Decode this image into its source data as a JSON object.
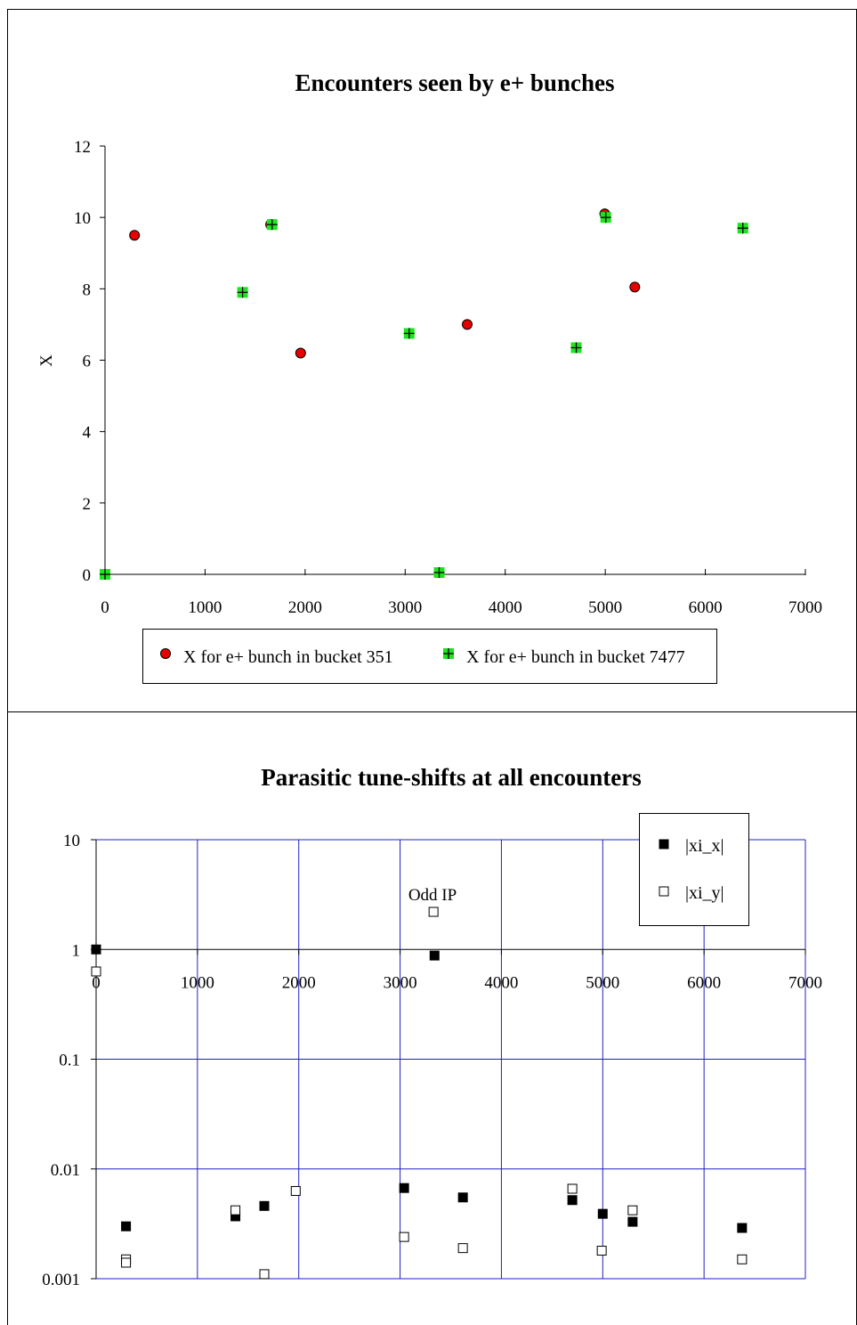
{
  "chart_data": [
    {
      "type": "scatter",
      "title": "Encounters seen by e+ bunches",
      "xlabel": "",
      "ylabel": "X",
      "xlim": [
        0,
        7000
      ],
      "ylim": [
        0,
        12
      ],
      "x_ticks": [
        0,
        1000,
        2000,
        3000,
        4000,
        5000,
        6000,
        7000
      ],
      "y_ticks": [
        0,
        2,
        4,
        6,
        8,
        10,
        12
      ],
      "grid": false,
      "legend_position": "bottom",
      "series": [
        {
          "name": "X  for e+ bunch in bucket 351",
          "marker": "circle",
          "color": "#e60000",
          "points": [
            [
              0,
              0
            ],
            [
              295,
              9.5
            ],
            [
              1655,
              9.8
            ],
            [
              1955,
              6.2
            ],
            [
              3340,
              0.05
            ],
            [
              3620,
              7.0
            ],
            [
              4995,
              10.1
            ],
            [
              5295,
              8.05
            ],
            [
              6375,
              9.7
            ]
          ]
        },
        {
          "name": "X for e+ bunch in bucket 7477",
          "marker": "plus-square",
          "color": "#1fe31f",
          "points": [
            [
              0,
              0
            ],
            [
              1375,
              7.9
            ],
            [
              1670,
              9.8
            ],
            [
              3040,
              6.75
            ],
            [
              3340,
              0.05
            ],
            [
              4710,
              6.35
            ],
            [
              5005,
              10.0
            ],
            [
              6375,
              9.7
            ]
          ]
        }
      ]
    },
    {
      "type": "scatter",
      "title": "Parasitic tune-shifts at all encounters",
      "xlabel": "",
      "ylabel": "",
      "xlim": [
        0,
        7000
      ],
      "ylim": [
        0.001,
        10
      ],
      "y_scale": "log",
      "x_ticks": [
        0,
        1000,
        2000,
        3000,
        4000,
        5000,
        6000,
        7000
      ],
      "y_tick_labels": [
        "10",
        "1",
        "0.1",
        "0.01",
        "0.001"
      ],
      "y_tick_values": [
        10,
        1,
        0.1,
        0.01,
        0.001
      ],
      "grid": true,
      "grid_color": "#2020c0",
      "legend_position": "top-right",
      "annotations": [
        {
          "text": "Odd IP",
          "x": 3320,
          "y": 3.2
        }
      ],
      "series": [
        {
          "name": "|xi_x|",
          "marker": "filled-square",
          "color": "#000000",
          "points": [
            [
              0,
              1.0
            ],
            [
              295,
              0.003
            ],
            [
              1375,
              0.0037
            ],
            [
              1660,
              0.0046
            ],
            [
              3040,
              0.0067
            ],
            [
              3340,
              0.88
            ],
            [
              3620,
              0.0055
            ],
            [
              4700,
              0.0052
            ],
            [
              5000,
              0.0039
            ],
            [
              5295,
              0.0033
            ],
            [
              6375,
              0.0029
            ]
          ]
        },
        {
          "name": "|xi_y|",
          "marker": "open-square",
          "color": "#000000",
          "points": [
            [
              0,
              0.63
            ],
            [
              295,
              0.0015
            ],
            [
              295,
              0.0014
            ],
            [
              1375,
              0.0042
            ],
            [
              1660,
              0.0011
            ],
            [
              1970,
              0.0063
            ],
            [
              3040,
              0.0024
            ],
            [
              3330,
              2.2
            ],
            [
              3620,
              0.0019
            ],
            [
              4700,
              0.0066
            ],
            [
              4990,
              0.0018
            ],
            [
              5295,
              0.0042
            ],
            [
              6375,
              0.0015
            ]
          ]
        }
      ]
    }
  ]
}
